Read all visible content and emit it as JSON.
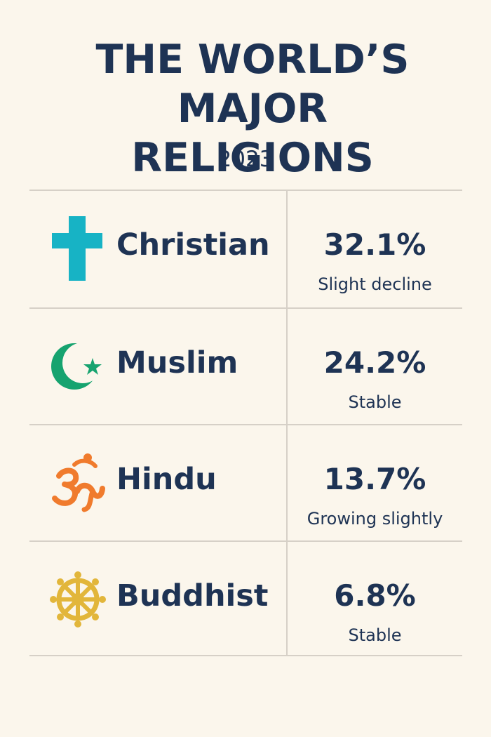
{
  "title_line1": "THE WORLD’S MAJOR",
  "title_line2": "RELIGIONS",
  "year": "2023",
  "rows": [
    {
      "name": "Christian",
      "percent": "32.1%",
      "trend": "Slight decline",
      "icon": "cross-icon",
      "icon_color": "#17b3c5"
    },
    {
      "name": "Muslim",
      "percent": "24.2%",
      "trend": "Stable",
      "icon": "crescent-star-icon",
      "icon_color": "#16a36f"
    },
    {
      "name": "Hindu",
      "percent": "13.7%",
      "trend": "Growing slightly",
      "icon": "om-icon",
      "icon_color": "#f07b2d"
    },
    {
      "name": "Buddhist",
      "percent": "6.8%",
      "trend": "Stable",
      "icon": "dharma-wheel-icon",
      "icon_color": "#e2b63b"
    }
  ],
  "colors": {
    "background": "#fbf6ec",
    "text": "#1e3354",
    "divider": "#d6d0c7"
  }
}
